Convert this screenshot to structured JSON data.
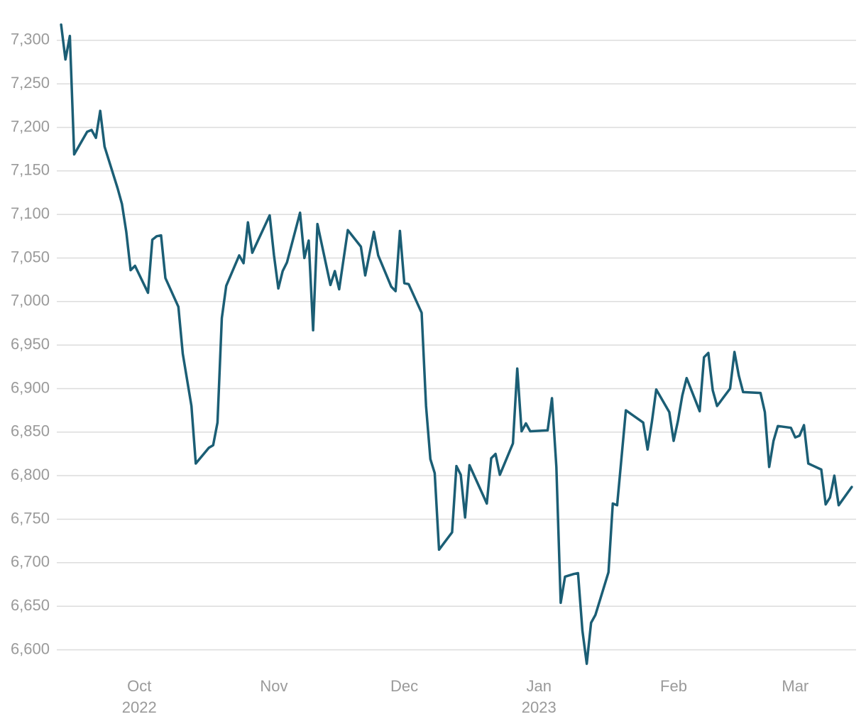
{
  "chart_data": {
    "type": "line",
    "title": "",
    "xlabel": "",
    "ylabel": "",
    "ylim": [
      6580,
      7330
    ],
    "xlim": [
      "2022-09-12",
      "2023-03-15"
    ],
    "grid": "horizontal",
    "legend": "none",
    "line_color": "#1b5e75",
    "y_ticks": [
      {
        "value": 6600,
        "label": "6,600"
      },
      {
        "value": 6650,
        "label": "6,650"
      },
      {
        "value": 6700,
        "label": "6,700"
      },
      {
        "value": 6750,
        "label": "6,750"
      },
      {
        "value": 6800,
        "label": "6,800"
      },
      {
        "value": 6850,
        "label": "6,850"
      },
      {
        "value": 6900,
        "label": "6,900"
      },
      {
        "value": 6950,
        "label": "6,950"
      },
      {
        "value": 7000,
        "label": "7,000"
      },
      {
        "value": 7050,
        "label": "7,050"
      },
      {
        "value": 7100,
        "label": "7,100"
      },
      {
        "value": 7150,
        "label": "7,150"
      },
      {
        "value": 7200,
        "label": "7,200"
      },
      {
        "value": 7250,
        "label": "7,250"
      },
      {
        "value": 7300,
        "label": "7,300"
      }
    ],
    "x_ticks": [
      {
        "date": "2022-10-01",
        "label": "Oct",
        "sublabel": "2022"
      },
      {
        "date": "2022-11-01",
        "label": "Nov",
        "sublabel": ""
      },
      {
        "date": "2022-12-01",
        "label": "Dec",
        "sublabel": ""
      },
      {
        "date": "2023-01-01",
        "label": "Jan",
        "sublabel": "2023"
      },
      {
        "date": "2023-02-01",
        "label": "Feb",
        "sublabel": ""
      },
      {
        "date": "2023-03-01",
        "label": "Mar",
        "sublabel": ""
      }
    ],
    "series": [
      {
        "points": [
          [
            "2022-09-13",
            7318
          ],
          [
            "2022-09-14",
            7278
          ],
          [
            "2022-09-15",
            7305
          ],
          [
            "2022-09-16",
            7169
          ],
          [
            "2022-09-19",
            7195
          ],
          [
            "2022-09-20",
            7197
          ],
          [
            "2022-09-21",
            7188
          ],
          [
            "2022-09-22",
            7219
          ],
          [
            "2022-09-23",
            7178
          ],
          [
            "2022-09-26",
            7130
          ],
          [
            "2022-09-27",
            7112
          ],
          [
            "2022-09-28",
            7080
          ],
          [
            "2022-09-29",
            7036
          ],
          [
            "2022-09-30",
            7041
          ],
          [
            "2022-10-03",
            7010
          ],
          [
            "2022-10-04",
            7071
          ],
          [
            "2022-10-05",
            7075
          ],
          [
            "2022-10-06",
            7076
          ],
          [
            "2022-10-07",
            7027
          ],
          [
            "2022-10-10",
            6994
          ],
          [
            "2022-10-11",
            6940
          ],
          [
            "2022-10-13",
            6880
          ],
          [
            "2022-10-14",
            6814
          ],
          [
            "2022-10-17",
            6832
          ],
          [
            "2022-10-18",
            6835
          ],
          [
            "2022-10-19",
            6861
          ],
          [
            "2022-10-20",
            6981
          ],
          [
            "2022-10-21",
            7018
          ],
          [
            "2022-10-24",
            7053
          ],
          [
            "2022-10-25",
            7044
          ],
          [
            "2022-10-26",
            7091
          ],
          [
            "2022-10-27",
            7056
          ],
          [
            "2022-10-31",
            7099
          ],
          [
            "2022-11-01",
            7053
          ],
          [
            "2022-11-02",
            7015
          ],
          [
            "2022-11-03",
            7035
          ],
          [
            "2022-11-04",
            7045
          ],
          [
            "2022-11-07",
            7102
          ],
          [
            "2022-11-08",
            7050
          ],
          [
            "2022-11-09",
            7070
          ],
          [
            "2022-11-10",
            6967
          ],
          [
            "2022-11-11",
            7089
          ],
          [
            "2022-11-14",
            7019
          ],
          [
            "2022-11-15",
            7035
          ],
          [
            "2022-11-16",
            7014
          ],
          [
            "2022-11-18",
            7082
          ],
          [
            "2022-11-21",
            7063
          ],
          [
            "2022-11-22",
            7030
          ],
          [
            "2022-11-24",
            7080
          ],
          [
            "2022-11-25",
            7053
          ],
          [
            "2022-11-28",
            7017
          ],
          [
            "2022-11-29",
            7012
          ],
          [
            "2022-11-30",
            7081
          ],
          [
            "2022-12-01",
            7021
          ],
          [
            "2022-12-02",
            7020
          ],
          [
            "2022-12-05",
            6987
          ],
          [
            "2022-12-06",
            6880
          ],
          [
            "2022-12-07",
            6819
          ],
          [
            "2022-12-08",
            6803
          ],
          [
            "2022-12-09",
            6715
          ],
          [
            "2022-12-12",
            6735
          ],
          [
            "2022-12-13",
            6811
          ],
          [
            "2022-12-14",
            6801
          ],
          [
            "2022-12-15",
            6752
          ],
          [
            "2022-12-16",
            6812
          ],
          [
            "2022-12-20",
            6768
          ],
          [
            "2022-12-21",
            6820
          ],
          [
            "2022-12-22",
            6825
          ],
          [
            "2022-12-23",
            6801
          ],
          [
            "2022-12-26",
            6837
          ],
          [
            "2022-12-27",
            6923
          ],
          [
            "2022-12-28",
            6851
          ],
          [
            "2022-12-29",
            6860
          ],
          [
            "2022-12-30",
            6851
          ],
          [
            "2023-01-03",
            6852
          ],
          [
            "2023-01-04",
            6889
          ],
          [
            "2023-01-05",
            6810
          ],
          [
            "2023-01-06",
            6654
          ],
          [
            "2023-01-07",
            6684
          ],
          [
            "2023-01-09",
            6687
          ],
          [
            "2023-01-10",
            6688
          ],
          [
            "2023-01-11",
            6622
          ],
          [
            "2023-01-12",
            6584
          ],
          [
            "2023-01-13",
            6631
          ],
          [
            "2023-01-14",
            6640
          ],
          [
            "2023-01-17",
            6689
          ],
          [
            "2023-01-18",
            6768
          ],
          [
            "2023-01-19",
            6766
          ],
          [
            "2023-01-20",
            6820
          ],
          [
            "2023-01-21",
            6875
          ],
          [
            "2023-01-25",
            6861
          ],
          [
            "2023-01-26",
            6830
          ],
          [
            "2023-01-27",
            6862
          ],
          [
            "2023-01-28",
            6899
          ],
          [
            "2023-01-31",
            6873
          ],
          [
            "2023-02-01",
            6840
          ],
          [
            "2023-02-02",
            6863
          ],
          [
            "2023-02-03",
            6892
          ],
          [
            "2023-02-04",
            6912
          ],
          [
            "2023-02-07",
            6874
          ],
          [
            "2023-02-08",
            6936
          ],
          [
            "2023-02-09",
            6941
          ],
          [
            "2023-02-10",
            6898
          ],
          [
            "2023-02-11",
            6880
          ],
          [
            "2023-02-14",
            6900
          ],
          [
            "2023-02-15",
            6942
          ],
          [
            "2023-02-16",
            6915
          ],
          [
            "2023-02-17",
            6896
          ],
          [
            "2023-02-21",
            6895
          ],
          [
            "2023-02-22",
            6873
          ],
          [
            "2023-02-23",
            6810
          ],
          [
            "2023-02-24",
            6840
          ],
          [
            "2023-02-25",
            6857
          ],
          [
            "2023-02-28",
            6855
          ],
          [
            "2023-03-01",
            6844
          ],
          [
            "2023-03-02",
            6846
          ],
          [
            "2023-03-03",
            6858
          ],
          [
            "2023-03-04",
            6814
          ],
          [
            "2023-03-07",
            6807
          ],
          [
            "2023-03-08",
            6767
          ],
          [
            "2023-03-09",
            6775
          ],
          [
            "2023-03-10",
            6800
          ],
          [
            "2023-03-11",
            6766
          ],
          [
            "2023-03-14",
            6787
          ]
        ]
      }
    ]
  }
}
